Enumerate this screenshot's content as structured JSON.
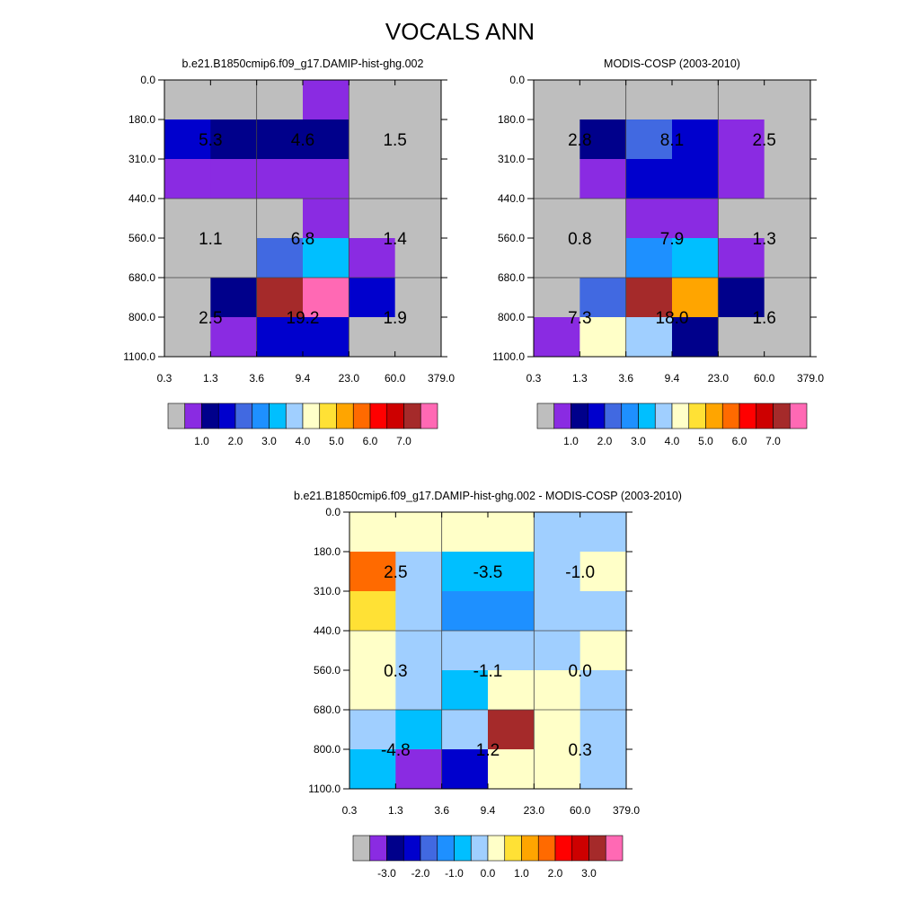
{
  "title": "VOCALS ANN",
  "colors": {
    "ctrl": [
      "#bebebe",
      "#8a2be2",
      "#00008b",
      "#0000cd",
      "#4169e1",
      "#1e90ff",
      "#00bfff",
      "#a0cfff",
      "#ffffc8",
      "#ffe135",
      "#ffa500",
      "#ff6a00",
      "#ff0000",
      "#cd0000",
      "#a52a2a",
      "#ff69b4"
    ],
    "diff": [
      "#bebebe",
      "#8a2be2",
      "#00008b",
      "#0000cd",
      "#4169e1",
      "#1e90ff",
      "#00bfff",
      "#a0cfff",
      "#ffffc8",
      "#ffe135",
      "#ffa500",
      "#ff6a00",
      "#ff0000",
      "#cd0000",
      "#a52a2a",
      "#ff69b4"
    ]
  },
  "chart_data": [
    {
      "type": "heatmap",
      "title": "b.e21.B1850cmip6.f09_g17.DAMIP-hist-ghg.002",
      "x_ticks": [
        "0.3",
        "1.3",
        "3.6",
        "9.4",
        "23.0",
        "60.0",
        "379.0"
      ],
      "y_ticks": [
        "0.0",
        "180.0",
        "310.0",
        "440.0",
        "560.0",
        "680.0",
        "800.0",
        "1100.0"
      ],
      "colorbar_labels": [
        "1.0",
        "2.0",
        "3.0",
        "4.0",
        "5.0",
        "6.0",
        "7.0"
      ],
      "cell_color_index": [
        [
          0,
          0,
          0,
          1,
          0,
          0
        ],
        [
          3,
          2,
          2,
          2,
          0,
          0
        ],
        [
          1,
          1,
          1,
          1,
          0,
          0
        ],
        [
          0,
          0,
          0,
          1,
          0,
          0
        ],
        [
          0,
          0,
          4,
          6,
          1,
          0
        ],
        [
          0,
          2,
          14,
          15,
          3,
          0
        ],
        [
          0,
          1,
          3,
          3,
          0,
          0
        ]
      ],
      "group_labels": [
        [
          "5.3",
          "4.6",
          "1.5"
        ],
        [
          "1.1",
          "6.8",
          "1.4"
        ],
        [
          "2.5",
          "19.2",
          "1.9"
        ]
      ]
    },
    {
      "type": "heatmap",
      "title": "MODIS-COSP (2003-2010)",
      "x_ticks": [
        "0.3",
        "1.3",
        "3.6",
        "9.4",
        "23.0",
        "60.0",
        "379.0"
      ],
      "y_ticks": [
        "0.0",
        "180.0",
        "310.0",
        "440.0",
        "560.0",
        "680.0",
        "800.0",
        "1100.0"
      ],
      "colorbar_labels": [
        "1.0",
        "2.0",
        "3.0",
        "4.0",
        "5.0",
        "6.0",
        "7.0"
      ],
      "cell_color_index": [
        [
          0,
          0,
          0,
          0,
          0,
          0
        ],
        [
          0,
          2,
          4,
          3,
          1,
          0
        ],
        [
          0,
          1,
          3,
          3,
          1,
          0
        ],
        [
          0,
          0,
          1,
          1,
          0,
          0
        ],
        [
          0,
          0,
          5,
          6,
          1,
          0
        ],
        [
          0,
          4,
          14,
          10,
          2,
          0
        ],
        [
          1,
          8,
          7,
          2,
          0,
          0
        ]
      ],
      "group_labels": [
        [
          "2.8",
          "8.1",
          "2.5"
        ],
        [
          "0.8",
          "7.9",
          "1.3"
        ],
        [
          "7.3",
          "18.0",
          "1.6"
        ]
      ]
    },
    {
      "type": "heatmap",
      "title": "b.e21.B1850cmip6.f09_g17.DAMIP-hist-ghg.002 - MODIS-COSP (2003-2010)",
      "x_ticks": [
        "0.3",
        "1.3",
        "3.6",
        "9.4",
        "23.0",
        "60.0",
        "379.0"
      ],
      "y_ticks": [
        "0.0",
        "180.0",
        "310.0",
        "440.0",
        "560.0",
        "680.0",
        "800.0",
        "1100.0"
      ],
      "colorbar_labels": [
        "-3.0",
        "-2.0",
        "-1.0",
        "0.0",
        "1.0",
        "2.0",
        "3.0"
      ],
      "cell_color_index": [
        [
          8,
          8,
          8,
          8,
          7,
          7
        ],
        [
          11,
          7,
          6,
          6,
          7,
          8
        ],
        [
          9,
          7,
          5,
          5,
          7,
          7
        ],
        [
          8,
          7,
          7,
          7,
          7,
          8
        ],
        [
          8,
          7,
          6,
          8,
          8,
          7
        ],
        [
          7,
          6,
          7,
          14,
          8,
          7
        ],
        [
          6,
          1,
          3,
          8,
          8,
          7
        ]
      ],
      "group_labels": [
        [
          "2.5",
          "-3.5",
          "-1.0"
        ],
        [
          "0.3",
          "-1.1",
          "0.0"
        ],
        [
          "-4.8",
          "1.2",
          "0.3"
        ]
      ]
    }
  ]
}
